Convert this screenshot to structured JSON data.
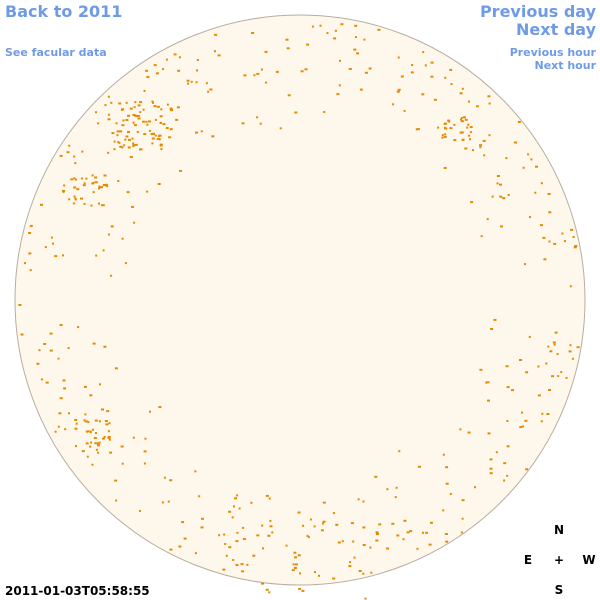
{
  "nav": {
    "back_year": "Back to 2011",
    "facular": "See facular data",
    "previous_day": "Previous day",
    "next_day": "Next day",
    "previous_hour": "Previous hour",
    "next_hour": "Next hour"
  },
  "timestamp": "2011-01-03T05:58:55",
  "compass": {
    "north": "N",
    "east": "E",
    "center": "+",
    "west": "W",
    "south": "S"
  }
}
